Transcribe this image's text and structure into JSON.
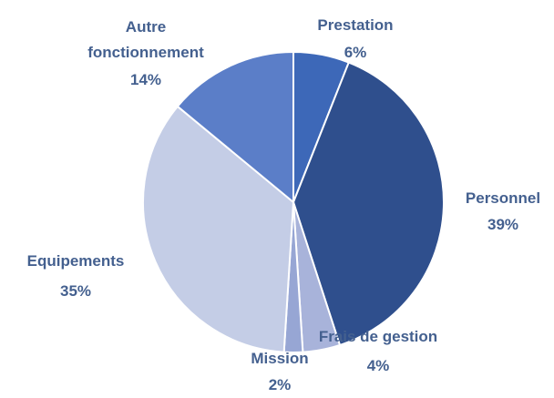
{
  "chart_data": {
    "type": "pie",
    "categories": [
      "Prestation",
      "Personnel",
      "Frais de gestion",
      "Mission",
      "Equipements",
      "Autre fonctionnement"
    ],
    "values": [
      6,
      39,
      4,
      2,
      35,
      14
    ],
    "value_labels": [
      "6%",
      "39%",
      "4%",
      "2%",
      "35%",
      "14%"
    ],
    "colors": [
      "#3d68b8",
      "#2f4f8d",
      "#a8b3da",
      "#97a6d4",
      "#c4cde6",
      "#5b7ec8"
    ]
  }
}
